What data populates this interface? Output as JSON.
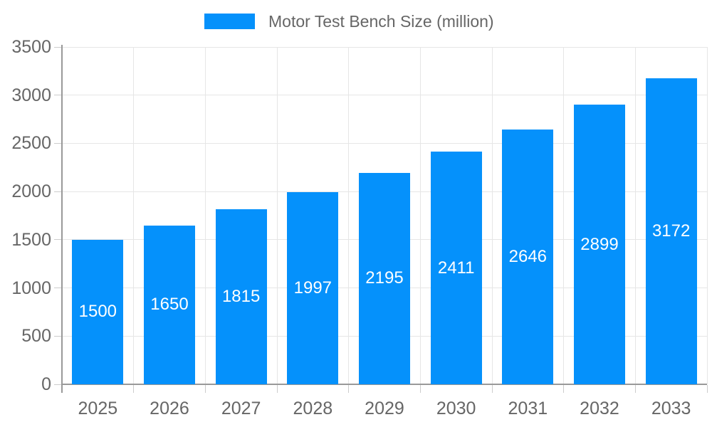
{
  "chart_data": {
    "type": "bar",
    "title": "Motor Test Bench Size (million)",
    "categories": [
      "2025",
      "2026",
      "2027",
      "2028",
      "2029",
      "2030",
      "2031",
      "2032",
      "2033"
    ],
    "series": [
      {
        "name": "Motor Test Bench Size (million)",
        "values": [
          1500,
          1650,
          1815,
          1997,
          2195,
          2411,
          2646,
          2899,
          3172
        ]
      }
    ],
    "xlabel": "",
    "ylabel": "",
    "ylim": [
      0,
      3500
    ],
    "ytick_step": 500,
    "yticks": [
      0,
      500,
      1000,
      1500,
      2000,
      2500,
      3000,
      3500
    ],
    "grid": true,
    "legend_position": "top",
    "bar_labels_inside": true,
    "colors": {
      "bar": "#0591fb",
      "bar_label": "#ffffff",
      "axis_text": "#666666",
      "legend_text": "#666666",
      "gridline": "#e6e6e6",
      "tick": "#cccccc",
      "axis_line": "#999999",
      "background": "#ffffff"
    }
  }
}
